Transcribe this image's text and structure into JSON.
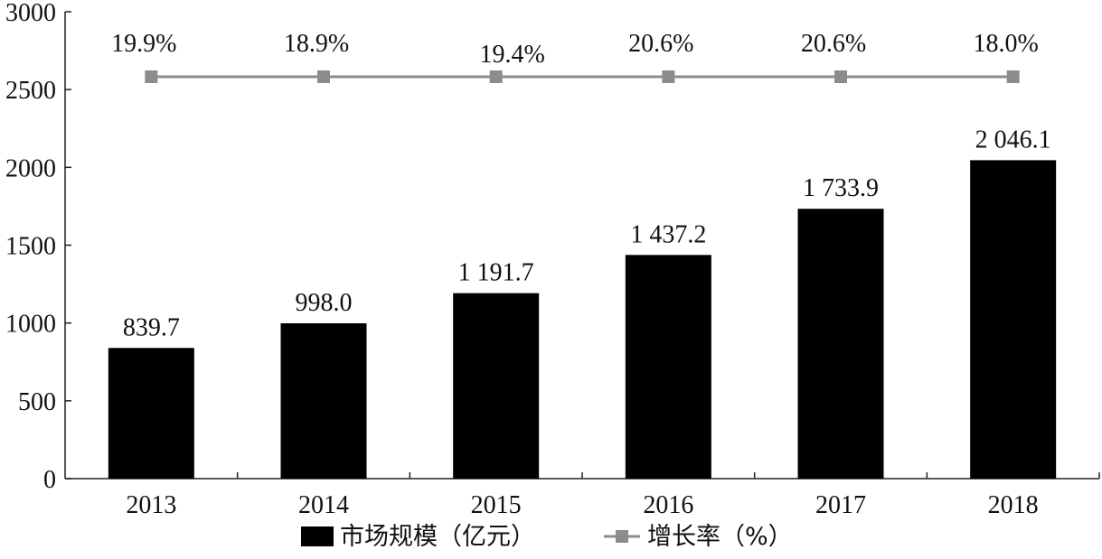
{
  "chart_data": {
    "type": "bar",
    "categories": [
      "2013",
      "2014",
      "2015",
      "2016",
      "2017",
      "2018"
    ],
    "series": [
      {
        "name": "市场规模（亿元）",
        "type": "bar",
        "values": [
          839.7,
          998.0,
          1191.7,
          1437.2,
          1733.9,
          2046.1
        ],
        "labels": [
          "839.7",
          "998.0",
          "1 191.7",
          "1 437.2",
          "1 733.9",
          "2 046.1"
        ],
        "color": "#000000"
      },
      {
        "name": "增长率（%）",
        "type": "line",
        "values": [
          19.9,
          18.9,
          19.4,
          20.6,
          20.6,
          18.0
        ],
        "labels": [
          "19.9%",
          "18.9%",
          "19.4%",
          "20.6%",
          "20.6%",
          "18.0%"
        ],
        "color": "#8c8c8c"
      }
    ],
    "y_axis": {
      "min": 0,
      "max": 3000,
      "ticks": [
        "0",
        "500",
        "1000",
        "1500",
        "2000",
        "2500",
        "3000"
      ]
    },
    "legend_position": "bottom"
  }
}
